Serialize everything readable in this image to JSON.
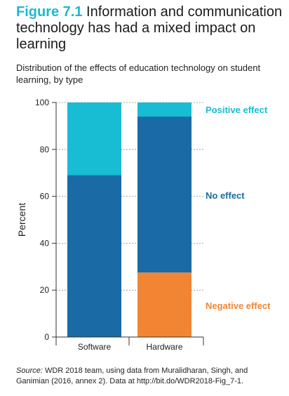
{
  "figure": {
    "number": "Figure 7.1",
    "title": "Information and communication technology has had a mixed impact on learning",
    "subtitle": "Distribution of the effects of education technology on student learning, by type"
  },
  "source": {
    "label": "Source:",
    "text": "WDR 2018 team, using data from Muralidharan, Singh, and Ganimian (2016, annex 2). Data at http://bit.do/WDR2018-Fig_7-1."
  },
  "chart_data": {
    "type": "bar",
    "stacked": true,
    "categories": [
      "Software",
      "Hardware"
    ],
    "series": [
      {
        "name": "Negative effect",
        "values": [
          0,
          27.5
        ],
        "color": "#f28534"
      },
      {
        "name": "No effect",
        "values": [
          69,
          66.5
        ],
        "color": "#1a6aa5"
      },
      {
        "name": "Positive effect",
        "values": [
          31,
          6
        ],
        "color": "#18bcd3"
      }
    ],
    "ylabel": "Percent",
    "xlabel": "",
    "ylim": [
      0,
      100
    ],
    "yticks": [
      0,
      20,
      40,
      60,
      80,
      100
    ],
    "grid": true,
    "legend": "right, labels aligned with segments"
  }
}
